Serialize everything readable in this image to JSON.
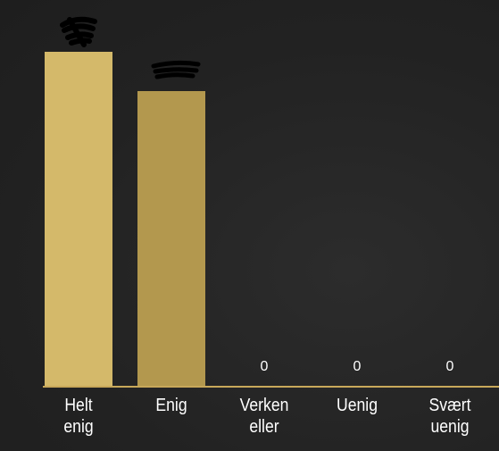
{
  "chart_data": {
    "type": "bar",
    "categories": [
      "Helt enig",
      "Enig",
      "Verken eller",
      "Uenig",
      "Svært uenig"
    ],
    "values": [
      17,
      15,
      0,
      0,
      0
    ],
    "colors": [
      "#d4b96a",
      "#b3984e",
      "#b3984e",
      "#b3984e",
      "#b3984e"
    ]
  }
}
